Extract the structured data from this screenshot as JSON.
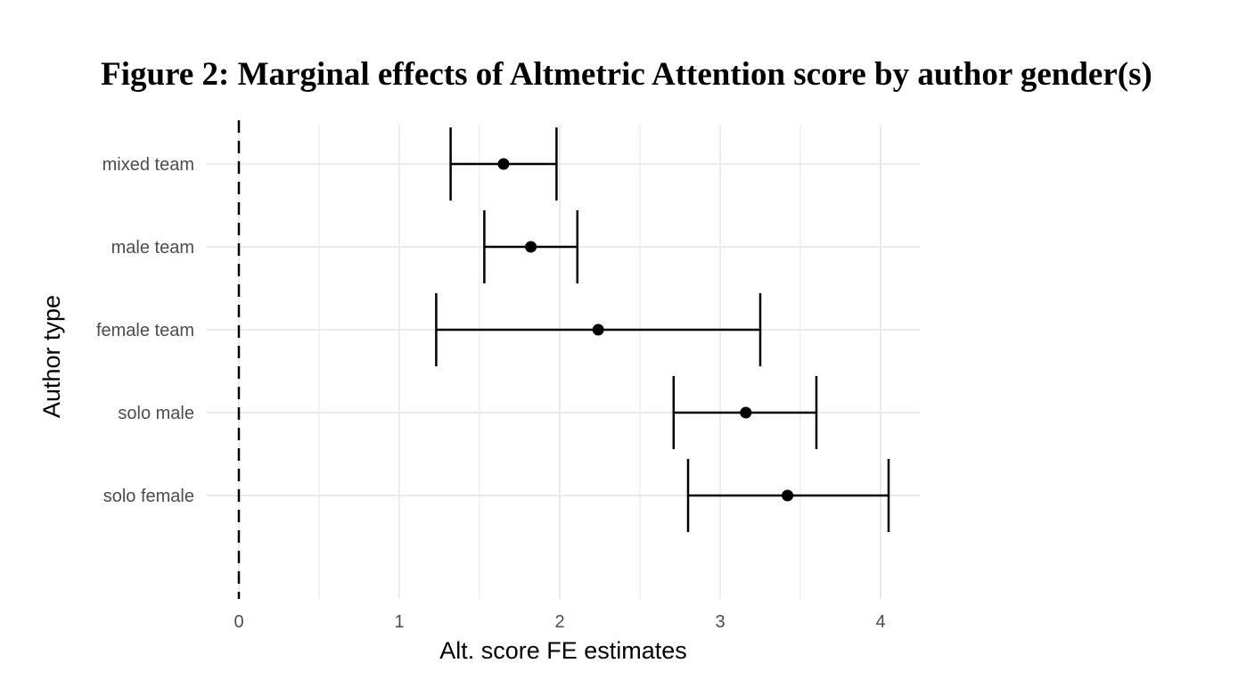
{
  "chart_data": {
    "type": "errorbar",
    "title": "Figure 2: Marginal effects of Altmetric Attention score by author gender(s)",
    "xlabel": "Alt. score FE estimates",
    "ylabel": "Author type",
    "xlim": [
      -0.2,
      4.25
    ],
    "xticks": [
      "0",
      "1",
      "2",
      "3",
      "4"
    ],
    "xtick_values": [
      0,
      1,
      2,
      3,
      4
    ],
    "reference_line": 0,
    "grid": true,
    "categories": [
      "mixed team",
      "male team",
      "female team",
      "solo male",
      "solo female"
    ],
    "estimates": [
      1.65,
      1.82,
      2.24,
      3.16,
      3.42
    ],
    "lower": [
      1.32,
      1.53,
      1.23,
      2.71,
      2.8
    ],
    "upper": [
      1.98,
      2.11,
      3.25,
      3.6,
      4.05
    ]
  }
}
